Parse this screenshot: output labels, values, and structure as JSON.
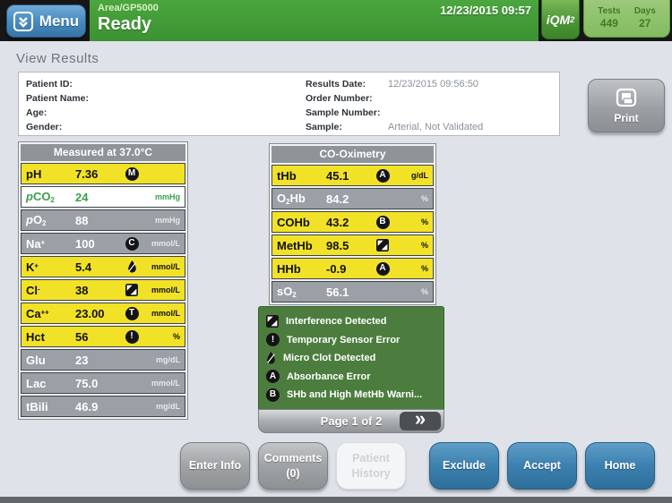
{
  "header": {
    "menu_label": "Menu",
    "area_label": "Area/GP5000",
    "status": "Ready",
    "datetime": "12/23/2015 09:57",
    "iqm_label": "iQM",
    "iqm_sub": "2",
    "stats": [
      {
        "label": "Tests",
        "value": "449"
      },
      {
        "label": "Days",
        "value": "27"
      }
    ]
  },
  "page": {
    "title": "View Results"
  },
  "patient": {
    "left": [
      {
        "label": "Patient ID:",
        "value": ""
      },
      {
        "label": "Patient Name:",
        "value": ""
      },
      {
        "label": "Age:",
        "value": ""
      },
      {
        "label": "Gender:",
        "value": ""
      }
    ],
    "right": [
      {
        "label": "Results Date:",
        "value": "12/23/2015 09:56:50"
      },
      {
        "label": "Order Number:",
        "value": ""
      },
      {
        "label": "Sample Number:",
        "value": ""
      },
      {
        "label": "Sample:",
        "value": "Arterial, Not Validated"
      }
    ]
  },
  "print_label": "Print",
  "tables": {
    "measured": {
      "title": "Measured at 37.0°C",
      "rows": [
        {
          "label": [
            [
              "pH",
              "n"
            ]
          ],
          "value": "7.36",
          "icon": "M",
          "unit": "",
          "style": "yellow"
        },
        {
          "label": [
            [
              "p",
              "i"
            ],
            [
              "CO",
              "n"
            ],
            [
              "2",
              "s"
            ]
          ],
          "value": "24",
          "icon": "",
          "unit": "mmHg",
          "style": "wgreen"
        },
        {
          "label": [
            [
              "p",
              "i"
            ],
            [
              "O",
              "n"
            ],
            [
              "2",
              "s"
            ]
          ],
          "value": "88",
          "icon": "",
          "unit": "mmHg",
          "style": "gray"
        },
        {
          "label": [
            [
              "Na",
              "n"
            ],
            [
              "+",
              "u"
            ]
          ],
          "value": "100",
          "icon": "C",
          "unit": "mmol/L",
          "style": "gray"
        },
        {
          "label": [
            [
              "K",
              "n"
            ],
            [
              "+",
              "u"
            ]
          ],
          "value": "5.4",
          "icon": "clot",
          "unit": "mmol/L",
          "style": "yellow"
        },
        {
          "label": [
            [
              "Cl",
              "n"
            ],
            [
              "-",
              "u"
            ]
          ],
          "value": "38",
          "icon": "interference",
          "unit": "mmol/L",
          "style": "yellow"
        },
        {
          "label": [
            [
              "Ca",
              "n"
            ],
            [
              "++",
              "u"
            ]
          ],
          "value": "23.00",
          "icon": "T",
          "unit": "mmol/L",
          "style": "yellow"
        },
        {
          "label": [
            [
              "Hct",
              "n"
            ]
          ],
          "value": "56",
          "icon": "!",
          "unit": "%",
          "style": "yellow"
        },
        {
          "label": [
            [
              "Glu",
              "n"
            ]
          ],
          "value": "23",
          "icon": "",
          "unit": "mg/dL",
          "style": "gray"
        },
        {
          "label": [
            [
              "Lac",
              "n"
            ]
          ],
          "value": "75.0",
          "icon": "",
          "unit": "mmol/L",
          "style": "gray"
        },
        {
          "label": [
            [
              "tBili",
              "n"
            ]
          ],
          "value": "46.9",
          "icon": "",
          "unit": "mg/dL",
          "style": "gray"
        }
      ]
    },
    "cooximetry": {
      "title": "CO-Oximetry",
      "rows": [
        {
          "label": [
            [
              "tHb",
              "n"
            ]
          ],
          "value": "45.1",
          "icon": "A",
          "unit": "g/dL",
          "style": "yellow"
        },
        {
          "label": [
            [
              "O",
              "n"
            ],
            [
              "2",
              "s"
            ],
            [
              "Hb",
              "n"
            ]
          ],
          "value": "84.2",
          "icon": "",
          "unit": "%",
          "style": "gray"
        },
        {
          "label": [
            [
              "COHb",
              "n"
            ]
          ],
          "value": "43.2",
          "icon": "B",
          "unit": "%",
          "style": "yellow"
        },
        {
          "label": [
            [
              "MetHb",
              "n"
            ]
          ],
          "value": "98.5",
          "icon": "interference",
          "unit": "%",
          "style": "yellow"
        },
        {
          "label": [
            [
              "HHb",
              "n"
            ]
          ],
          "value": "-0.9",
          "icon": "A",
          "unit": "%",
          "style": "yellow"
        },
        {
          "label": [
            [
              "sO",
              "n"
            ],
            [
              "2",
              "s"
            ]
          ],
          "value": "56.1",
          "icon": "",
          "unit": "%",
          "style": "gray"
        }
      ]
    }
  },
  "legend": {
    "items": [
      {
        "icon": "interference",
        "text": "Interference Detected"
      },
      {
        "icon": "!",
        "text": "Temporary Sensor Error"
      },
      {
        "icon": "clot",
        "text": "Micro Clot Detected"
      },
      {
        "icon": "A",
        "text": "Absorbance Error"
      },
      {
        "icon": "B",
        "text": "SHb and High MetHb Warni..."
      }
    ],
    "pagination": {
      "label": "Page 1 of 2",
      "next": "»"
    }
  },
  "footer": {
    "buttons": [
      {
        "line1": "Enter Info",
        "line2": "",
        "style": "gray",
        "name": "enter-info-button"
      },
      {
        "line1": "Comments",
        "line2": "(0)",
        "style": "gray",
        "name": "comments-button"
      },
      {
        "line1": "Patient",
        "line2": "History",
        "style": "disabled",
        "name": "patient-history-button"
      },
      {
        "line1": "Exclude",
        "line2": "",
        "style": "blue",
        "name": "exclude-button"
      },
      {
        "line1": "Accept",
        "line2": "",
        "style": "blue",
        "name": "accept-button"
      },
      {
        "line1": "Home",
        "line2": "",
        "style": "blue",
        "name": "home-button"
      }
    ]
  },
  "colors": {
    "header_green": "#3f9c35",
    "menu_blue": "#4b8ec2",
    "row_yellow": "#f1e227",
    "row_gray": "#9aa0a5",
    "legend_green": "#4c7d3e",
    "button_blue": "#3c80af",
    "flag_black": "#141414"
  }
}
